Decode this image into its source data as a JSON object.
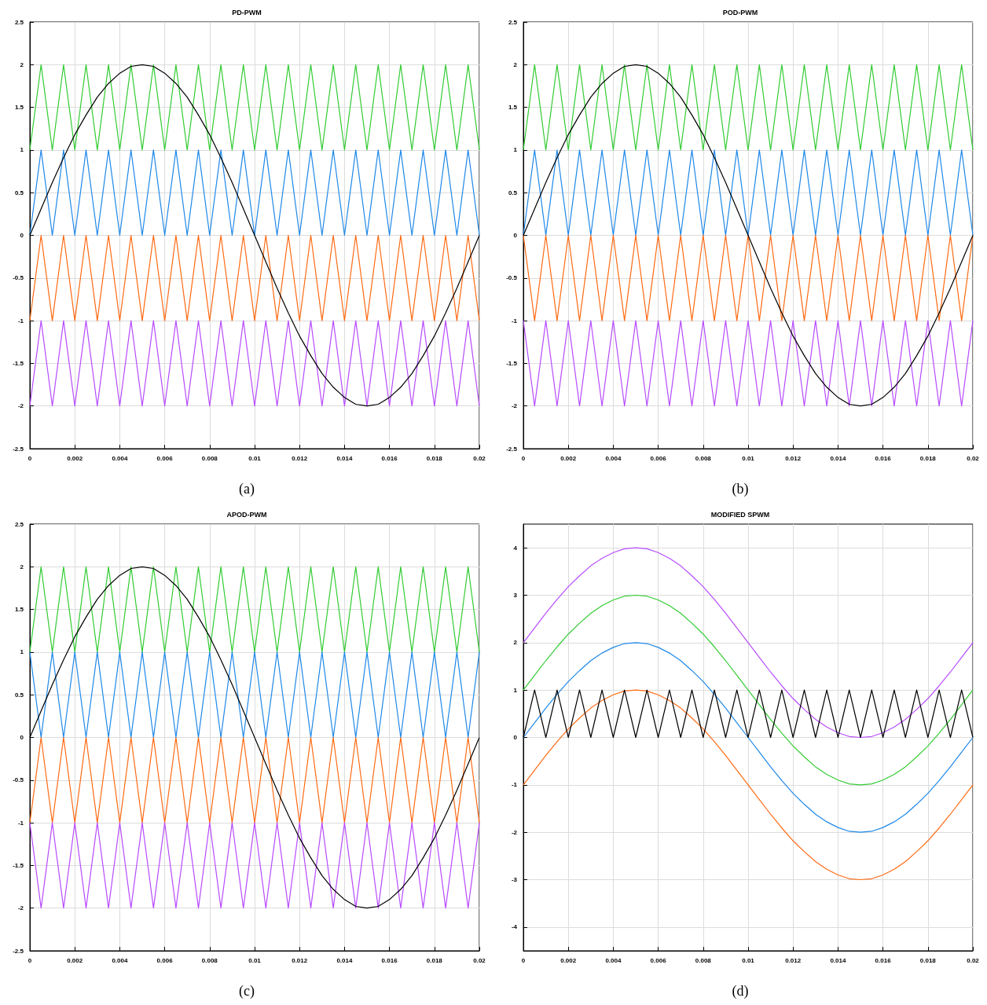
{
  "chart_data": [
    {
      "type": "line",
      "title": "PD-PWM",
      "annotations": [
        "(a)"
      ],
      "grid": true,
      "marker": "none",
      "line_style": "solid",
      "xlim": [
        0,
        0.02
      ],
      "xticks": [
        0,
        0.002,
        0.004,
        0.006,
        0.008,
        0.01,
        0.012,
        0.014,
        0.016,
        0.018,
        0.02
      ],
      "ylim": [
        -2.5,
        2.5
      ],
      "yticks": [
        -2.5,
        -2,
        -1.5,
        -1,
        -0.5,
        0,
        0.5,
        1,
        1.5,
        2,
        2.5
      ],
      "x": [
        0,
        0.0005,
        0.001,
        0.0015,
        0.002,
        0.0025,
        0.003,
        0.0035,
        0.004,
        0.0045,
        0.005,
        0.0055,
        0.006,
        0.0065,
        0.007,
        0.0075,
        0.008,
        0.0085,
        0.009,
        0.0095,
        0.01,
        0.0105,
        0.011,
        0.0115,
        0.012,
        0.0125,
        0.013,
        0.0135,
        0.014,
        0.0145,
        0.015,
        0.0155,
        0.016,
        0.0165,
        0.017,
        0.0175,
        0.018,
        0.0185,
        0.019,
        0.0195,
        0.02
      ],
      "series": [
        {
          "color": "#33cc33",
          "values": [
            1,
            2,
            1,
            2,
            1,
            2,
            1,
            2,
            1,
            2,
            1,
            2,
            1,
            2,
            1,
            2,
            1,
            2,
            1,
            2,
            1,
            2,
            1,
            2,
            1,
            2,
            1,
            2,
            1,
            2,
            1,
            2,
            1,
            2,
            1,
            2,
            1,
            2,
            1,
            2,
            1
          ]
        },
        {
          "color": "#1f88e8",
          "values": [
            0,
            1,
            0,
            1,
            0,
            1,
            0,
            1,
            0,
            1,
            0,
            1,
            0,
            1,
            0,
            1,
            0,
            1,
            0,
            1,
            0,
            1,
            0,
            1,
            0,
            1,
            0,
            1,
            0,
            1,
            0,
            1,
            0,
            1,
            0,
            1,
            0,
            1,
            0,
            1,
            0
          ]
        },
        {
          "color": "#ff6a13",
          "values": [
            -1,
            0,
            -1,
            0,
            -1,
            0,
            -1,
            0,
            -1,
            0,
            -1,
            0,
            -1,
            0,
            -1,
            0,
            -1,
            0,
            -1,
            0,
            -1,
            0,
            -1,
            0,
            -1,
            0,
            -1,
            0,
            -1,
            0,
            -1,
            0,
            -1,
            0,
            -1,
            0,
            -1,
            0,
            -1,
            0,
            -1
          ]
        },
        {
          "color": "#b84bff",
          "values": [
            -2,
            -1,
            -2,
            -1,
            -2,
            -1,
            -2,
            -1,
            -2,
            -1,
            -2,
            -1,
            -2,
            -1,
            -2,
            -1,
            -2,
            -1,
            -2,
            -1,
            -2,
            -1,
            -2,
            -1,
            -2,
            -1,
            -2,
            -1,
            -2,
            -1,
            -2,
            -1,
            -2,
            -1,
            -2,
            -1,
            -2,
            -1,
            -2,
            -1,
            -2
          ]
        },
        {
          "color": "#000000",
          "values": [
            0,
            0.31,
            0.62,
            0.91,
            1.18,
            1.41,
            1.62,
            1.78,
            1.9,
            1.98,
            2,
            1.98,
            1.9,
            1.78,
            1.62,
            1.41,
            1.18,
            0.91,
            0.62,
            0.31,
            0,
            -0.31,
            -0.62,
            -0.91,
            -1.18,
            -1.41,
            -1.62,
            -1.78,
            -1.9,
            -1.98,
            -2,
            -1.98,
            -1.9,
            -1.78,
            -1.62,
            -1.41,
            -1.18,
            -0.91,
            -0.62,
            -0.31,
            0
          ]
        }
      ]
    },
    {
      "type": "line",
      "title": "POD-PWM",
      "annotations": [
        "(b)"
      ],
      "grid": true,
      "marker": "none",
      "line_style": "solid",
      "xlim": [
        0,
        0.02
      ],
      "xticks": [
        0,
        0.002,
        0.004,
        0.006,
        0.008,
        0.01,
        0.012,
        0.014,
        0.016,
        0.018,
        0.02
      ],
      "ylim": [
        -2.5,
        2.5
      ],
      "yticks": [
        -2.5,
        -2,
        -1.5,
        -1,
        -0.5,
        0,
        0.5,
        1,
        1.5,
        2,
        2.5
      ],
      "x": [
        0,
        0.0005,
        0.001,
        0.0015,
        0.002,
        0.0025,
        0.003,
        0.0035,
        0.004,
        0.0045,
        0.005,
        0.0055,
        0.006,
        0.0065,
        0.007,
        0.0075,
        0.008,
        0.0085,
        0.009,
        0.0095,
        0.01,
        0.0105,
        0.011,
        0.0115,
        0.012,
        0.0125,
        0.013,
        0.0135,
        0.014,
        0.0145,
        0.015,
        0.0155,
        0.016,
        0.0165,
        0.017,
        0.0175,
        0.018,
        0.0185,
        0.019,
        0.0195,
        0.02
      ],
      "series": [
        {
          "color": "#33cc33",
          "values": [
            1,
            2,
            1,
            2,
            1,
            2,
            1,
            2,
            1,
            2,
            1,
            2,
            1,
            2,
            1,
            2,
            1,
            2,
            1,
            2,
            1,
            2,
            1,
            2,
            1,
            2,
            1,
            2,
            1,
            2,
            1,
            2,
            1,
            2,
            1,
            2,
            1,
            2,
            1,
            2,
            1
          ]
        },
        {
          "color": "#1f88e8",
          "values": [
            0,
            1,
            0,
            1,
            0,
            1,
            0,
            1,
            0,
            1,
            0,
            1,
            0,
            1,
            0,
            1,
            0,
            1,
            0,
            1,
            0,
            1,
            0,
            1,
            0,
            1,
            0,
            1,
            0,
            1,
            0,
            1,
            0,
            1,
            0,
            1,
            0,
            1,
            0,
            1,
            0
          ]
        },
        {
          "color": "#ff6a13",
          "values": [
            0,
            -1,
            0,
            -1,
            0,
            -1,
            0,
            -1,
            0,
            -1,
            0,
            -1,
            0,
            -1,
            0,
            -1,
            0,
            -1,
            0,
            -1,
            0,
            -1,
            0,
            -1,
            0,
            -1,
            0,
            -1,
            0,
            -1,
            0,
            -1,
            0,
            -1,
            0,
            -1,
            0,
            -1,
            0,
            -1,
            0
          ]
        },
        {
          "color": "#b84bff",
          "values": [
            -1,
            -2,
            -1,
            -2,
            -1,
            -2,
            -1,
            -2,
            -1,
            -2,
            -1,
            -2,
            -1,
            -2,
            -1,
            -2,
            -1,
            -2,
            -1,
            -2,
            -1,
            -2,
            -1,
            -2,
            -1,
            -2,
            -1,
            -2,
            -1,
            -2,
            -1,
            -2,
            -1,
            -2,
            -1,
            -2,
            -1,
            -2,
            -1,
            -2,
            -1
          ]
        },
        {
          "color": "#000000",
          "values": [
            0,
            0.31,
            0.62,
            0.91,
            1.18,
            1.41,
            1.62,
            1.78,
            1.9,
            1.98,
            2,
            1.98,
            1.9,
            1.78,
            1.62,
            1.41,
            1.18,
            0.91,
            0.62,
            0.31,
            0,
            -0.31,
            -0.62,
            -0.91,
            -1.18,
            -1.41,
            -1.62,
            -1.78,
            -1.9,
            -1.98,
            -2,
            -1.98,
            -1.9,
            -1.78,
            -1.62,
            -1.41,
            -1.18,
            -0.91,
            -0.62,
            -0.31,
            0
          ]
        }
      ]
    },
    {
      "type": "line",
      "title": "APOD-PWM",
      "annotations": [
        "(c)"
      ],
      "grid": true,
      "marker": "none",
      "line_style": "solid",
      "xlim": [
        0,
        0.02
      ],
      "xticks": [
        0,
        0.002,
        0.004,
        0.006,
        0.008,
        0.01,
        0.012,
        0.014,
        0.016,
        0.018,
        0.02
      ],
      "ylim": [
        -2.5,
        2.5
      ],
      "yticks": [
        -2.5,
        -2,
        -1.5,
        -1,
        -0.5,
        0,
        0.5,
        1,
        1.5,
        2,
        2.5
      ],
      "x": [
        0,
        0.0005,
        0.001,
        0.0015,
        0.002,
        0.0025,
        0.003,
        0.0035,
        0.004,
        0.0045,
        0.005,
        0.0055,
        0.006,
        0.0065,
        0.007,
        0.0075,
        0.008,
        0.0085,
        0.009,
        0.0095,
        0.01,
        0.0105,
        0.011,
        0.0115,
        0.012,
        0.0125,
        0.013,
        0.0135,
        0.014,
        0.0145,
        0.015,
        0.0155,
        0.016,
        0.0165,
        0.017,
        0.0175,
        0.018,
        0.0185,
        0.019,
        0.0195,
        0.02
      ],
      "series": [
        {
          "color": "#33cc33",
          "values": [
            1,
            2,
            1,
            2,
            1,
            2,
            1,
            2,
            1,
            2,
            1,
            2,
            1,
            2,
            1,
            2,
            1,
            2,
            1,
            2,
            1,
            2,
            1,
            2,
            1,
            2,
            1,
            2,
            1,
            2,
            1,
            2,
            1,
            2,
            1,
            2,
            1,
            2,
            1,
            2,
            1
          ]
        },
        {
          "color": "#1f88e8",
          "values": [
            1,
            0,
            1,
            0,
            1,
            0,
            1,
            0,
            1,
            0,
            1,
            0,
            1,
            0,
            1,
            0,
            1,
            0,
            1,
            0,
            1,
            0,
            1,
            0,
            1,
            0,
            1,
            0,
            1,
            0,
            1,
            0,
            1,
            0,
            1,
            0,
            1,
            0,
            1,
            0,
            1
          ]
        },
        {
          "color": "#ff6a13",
          "values": [
            -1,
            0,
            -1,
            0,
            -1,
            0,
            -1,
            0,
            -1,
            0,
            -1,
            0,
            -1,
            0,
            -1,
            0,
            -1,
            0,
            -1,
            0,
            -1,
            0,
            -1,
            0,
            -1,
            0,
            -1,
            0,
            -1,
            0,
            -1,
            0,
            -1,
            0,
            -1,
            0,
            -1,
            0,
            -1,
            0,
            -1
          ]
        },
        {
          "color": "#b84bff",
          "values": [
            -1,
            -2,
            -1,
            -2,
            -1,
            -2,
            -1,
            -2,
            -1,
            -2,
            -1,
            -2,
            -1,
            -2,
            -1,
            -2,
            -1,
            -2,
            -1,
            -2,
            -1,
            -2,
            -1,
            -2,
            -1,
            -2,
            -1,
            -2,
            -1,
            -2,
            -1,
            -2,
            -1,
            -2,
            -1,
            -2,
            -1,
            -2,
            -1,
            -2,
            -1
          ]
        },
        {
          "color": "#000000",
          "values": [
            0,
            0.31,
            0.62,
            0.91,
            1.18,
            1.41,
            1.62,
            1.78,
            1.9,
            1.98,
            2,
            1.98,
            1.9,
            1.78,
            1.62,
            1.41,
            1.18,
            0.91,
            0.62,
            0.31,
            0,
            -0.31,
            -0.62,
            -0.91,
            -1.18,
            -1.41,
            -1.62,
            -1.78,
            -1.9,
            -1.98,
            -2,
            -1.98,
            -1.9,
            -1.78,
            -1.62,
            -1.41,
            -1.18,
            -0.91,
            -0.62,
            -0.31,
            0
          ]
        }
      ]
    },
    {
      "type": "line",
      "title": "MODIFIED SPWM",
      "annotations": [
        "(d)"
      ],
      "grid": true,
      "marker": "none",
      "line_style": "solid",
      "xlim": [
        0,
        0.02
      ],
      "xticks": [
        0,
        0.002,
        0.004,
        0.006,
        0.008,
        0.01,
        0.012,
        0.014,
        0.016,
        0.018,
        0.02
      ],
      "ylim": [
        -4.5,
        4.5
      ],
      "yticks": [
        -4,
        -3,
        -2,
        -1,
        0,
        1,
        2,
        3,
        4
      ],
      "x": [
        0,
        0.0005,
        0.001,
        0.0015,
        0.002,
        0.0025,
        0.003,
        0.0035,
        0.004,
        0.0045,
        0.005,
        0.0055,
        0.006,
        0.0065,
        0.007,
        0.0075,
        0.008,
        0.0085,
        0.009,
        0.0095,
        0.01,
        0.0105,
        0.011,
        0.0115,
        0.012,
        0.0125,
        0.013,
        0.0135,
        0.014,
        0.0145,
        0.015,
        0.0155,
        0.016,
        0.0165,
        0.017,
        0.0175,
        0.018,
        0.0185,
        0.019,
        0.0195,
        0.02
      ],
      "series": [
        {
          "color": "#b84bff",
          "values": [
            2,
            2.31,
            2.62,
            2.91,
            3.18,
            3.41,
            3.62,
            3.78,
            3.9,
            3.98,
            4,
            3.98,
            3.9,
            3.78,
            3.62,
            3.41,
            3.18,
            2.91,
            2.62,
            2.31,
            2,
            1.69,
            1.38,
            1.09,
            0.82,
            0.59,
            0.38,
            0.22,
            0.1,
            0.02,
            0,
            0.02,
            0.1,
            0.22,
            0.38,
            0.59,
            0.82,
            1.09,
            1.38,
            1.69,
            2
          ]
        },
        {
          "color": "#33cc33",
          "values": [
            1,
            1.31,
            1.62,
            1.91,
            2.18,
            2.41,
            2.62,
            2.78,
            2.9,
            2.98,
            3,
            2.98,
            2.9,
            2.78,
            2.62,
            2.41,
            2.18,
            1.91,
            1.62,
            1.31,
            1,
            0.69,
            0.38,
            0.09,
            -0.18,
            -0.41,
            -0.62,
            -0.78,
            -0.9,
            -0.98,
            -1,
            -0.98,
            -0.9,
            -0.78,
            -0.62,
            -0.41,
            -0.18,
            0.09,
            0.38,
            0.69,
            1
          ]
        },
        {
          "color": "#1f88e8",
          "values": [
            0,
            0.31,
            0.62,
            0.91,
            1.18,
            1.41,
            1.62,
            1.78,
            1.9,
            1.98,
            2,
            1.98,
            1.9,
            1.78,
            1.62,
            1.41,
            1.18,
            0.91,
            0.62,
            0.31,
            0,
            -0.31,
            -0.62,
            -0.91,
            -1.18,
            -1.41,
            -1.62,
            -1.78,
            -1.9,
            -1.98,
            -2,
            -1.98,
            -1.9,
            -1.78,
            -1.62,
            -1.41,
            -1.18,
            -0.91,
            -0.62,
            -0.31,
            0
          ]
        },
        {
          "color": "#ff6a13",
          "values": [
            -1,
            -0.69,
            -0.38,
            -0.09,
            0.18,
            0.41,
            0.62,
            0.78,
            0.9,
            0.98,
            1,
            0.98,
            0.9,
            0.78,
            0.62,
            0.41,
            0.18,
            -0.09,
            -0.38,
            -0.69,
            -1,
            -1.31,
            -1.62,
            -1.91,
            -2.18,
            -2.41,
            -2.62,
            -2.78,
            -2.9,
            -2.98,
            -3,
            -2.98,
            -2.9,
            -2.78,
            -2.62,
            -2.41,
            -2.18,
            -1.91,
            -1.62,
            -1.31,
            -1
          ]
        },
        {
          "color": "#000000",
          "values": [
            0,
            1,
            0,
            1,
            0,
            1,
            0,
            1,
            0,
            1,
            0,
            1,
            0,
            1,
            0,
            1,
            0,
            1,
            0,
            1,
            0,
            1,
            0,
            1,
            0,
            1,
            0,
            1,
            0,
            1,
            0,
            1,
            0,
            1,
            0,
            1,
            0,
            1,
            0,
            1,
            0
          ]
        }
      ]
    }
  ]
}
